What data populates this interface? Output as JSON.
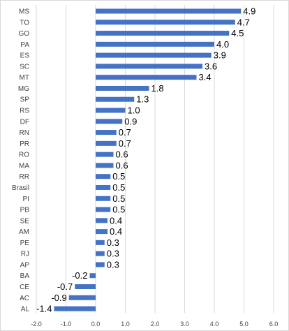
{
  "chart_data": {
    "type": "bar",
    "orientation": "horizontal",
    "categories": [
      "MS",
      "TO",
      "GO",
      "PA",
      "ES",
      "SC",
      "MT",
      "MG",
      "SP",
      "RS",
      "DF",
      "RN",
      "PR",
      "RO",
      "MA",
      "RR",
      "Brasil",
      "PI",
      "PB",
      "SE",
      "AM",
      "PE",
      "RJ",
      "AP",
      "BA",
      "CE",
      "AC",
      "AL"
    ],
    "values": [
      4.9,
      4.7,
      4.5,
      4.0,
      3.9,
      3.6,
      3.4,
      1.8,
      1.3,
      1.0,
      0.9,
      0.7,
      0.7,
      0.6,
      0.6,
      0.5,
      0.5,
      0.5,
      0.5,
      0.4,
      0.4,
      0.3,
      0.3,
      0.3,
      -0.2,
      -0.7,
      -0.9,
      -1.4
    ],
    "data_labels": [
      "4.9",
      "4.7",
      "4.5",
      "4.0",
      "3.9",
      "3.6",
      "3.4",
      "1.8",
      "1.3",
      "1.0",
      "0.9",
      "0.7",
      "0.7",
      "0.6",
      "0.6",
      "0.5",
      "0.5",
      "0.5",
      "0.5",
      "0.4",
      "0.4",
      "0.3",
      "0.3",
      "0.3",
      "-0.2",
      "-0.7",
      "-0.9",
      "-1.4"
    ],
    "x_ticks": [
      "-2.0",
      "-1.0",
      "0.0",
      "1.0",
      "2.0",
      "3.0",
      "4.0",
      "5.0",
      "6.0"
    ],
    "xlim": [
      -2.0,
      6.0
    ],
    "tick_step": 1.0,
    "grid": "vertical",
    "title": "",
    "xlabel": "",
    "ylabel": "",
    "legend": "none",
    "colors": {
      "bar": "#4472c4",
      "grid": "#d9d9d9",
      "text": "#404040",
      "label": "#000000",
      "border": "#d9d9d9"
    }
  }
}
